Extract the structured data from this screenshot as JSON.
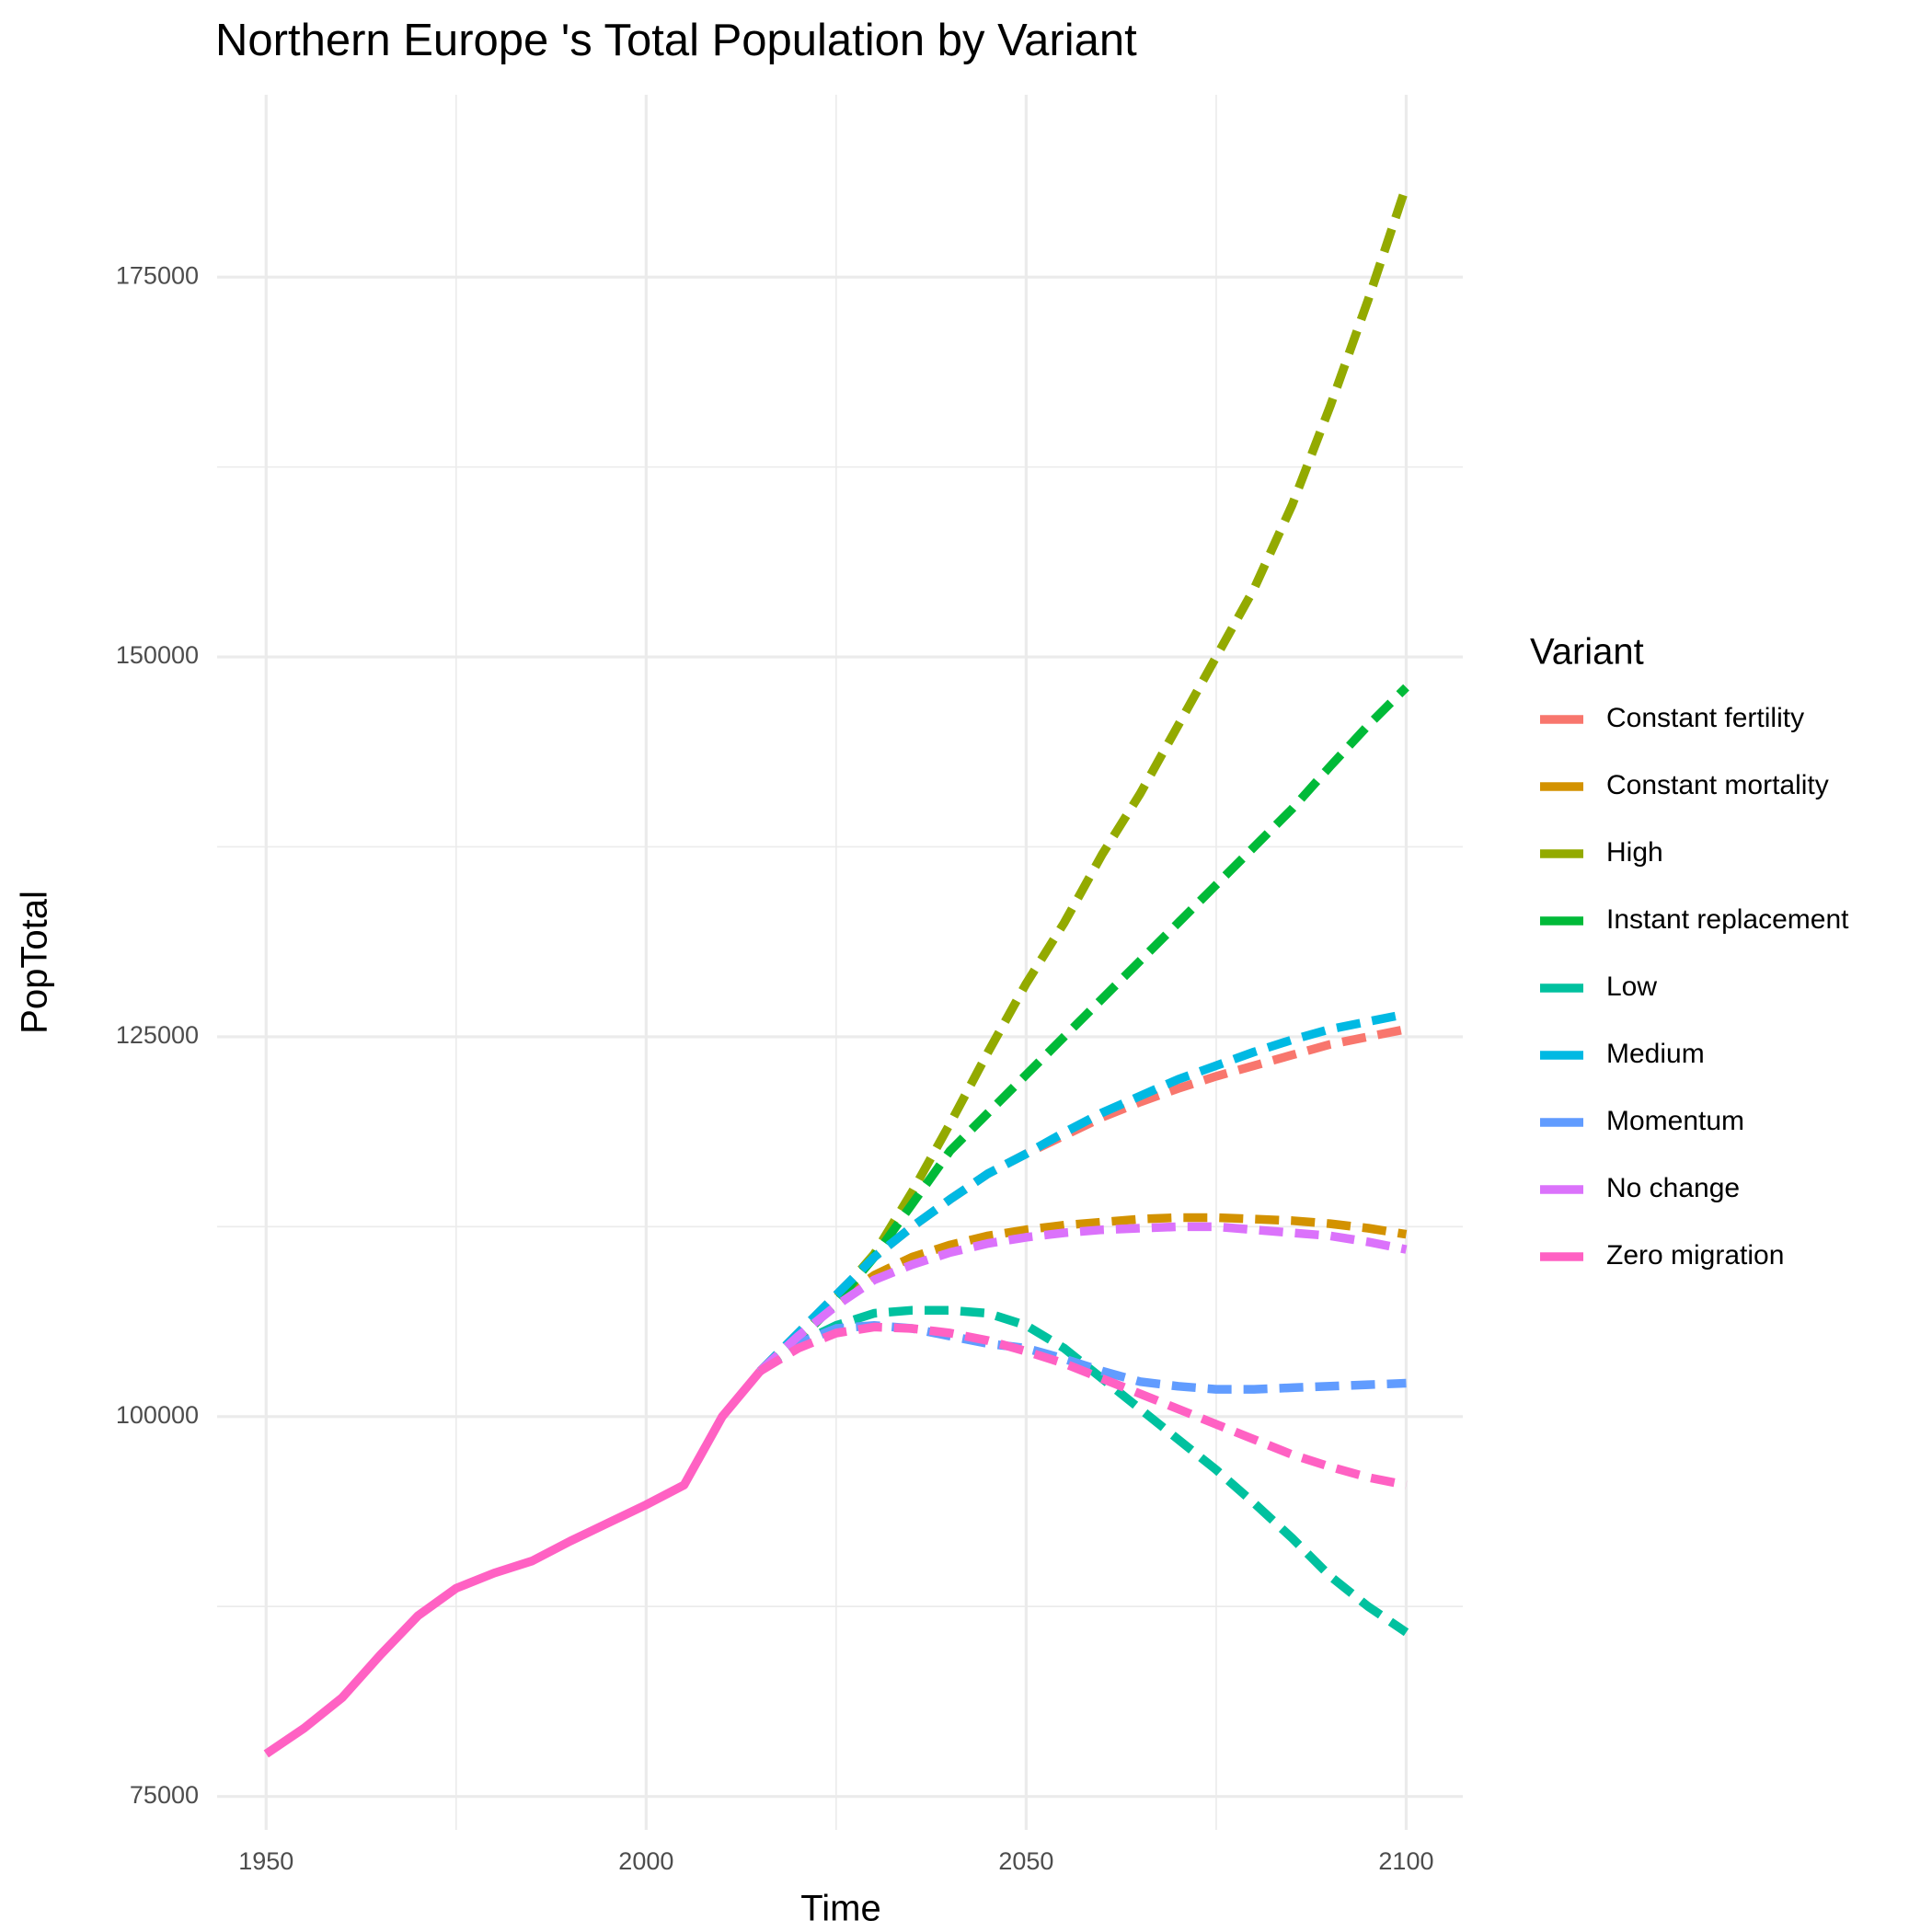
{
  "chart_data": {
    "type": "line",
    "title": "Northern Europe 's Total Population by Variant",
    "xlabel": "Time",
    "ylabel": "PopTotal",
    "legend_title": "Variant",
    "x": [
      1950,
      1955,
      1960,
      1965,
      1970,
      1975,
      1980,
      1985,
      1990,
      1995,
      2000,
      2005,
      2010,
      2015,
      2020,
      2025,
      2030,
      2035,
      2040,
      2045,
      2050,
      2055,
      2060,
      2065,
      2070,
      2075,
      2080,
      2085,
      2090,
      2095,
      2100
    ],
    "projection_from": 2015,
    "xlim": [
      1943.55,
      2107.45
    ],
    "xticks": [
      1950,
      2000,
      2050,
      2100
    ],
    "minor_xticks": [
      1975,
      2025,
      2075
    ],
    "ylim": [
      72800,
      187000
    ],
    "yticks": [
      75000,
      100000,
      125000,
      150000,
      175000
    ],
    "minor_yticks": [
      87500,
      112500,
      137500,
      162500
    ],
    "grid": true,
    "legend": "right",
    "series": [
      {
        "name": "Constant fertility",
        "color": "#F8766D",
        "values": [
          null,
          null,
          null,
          null,
          null,
          null,
          null,
          null,
          null,
          null,
          null,
          null,
          null,
          103000,
          105500,
          108000,
          110500,
          112500,
          114300,
          116000,
          117300,
          118500,
          119700,
          120700,
          121600,
          122400,
          123100,
          123800,
          124500,
          125000,
          125500
        ]
      },
      {
        "name": "Constant mortality",
        "color": "#D39200",
        "values": [
          null,
          null,
          null,
          null,
          null,
          null,
          null,
          null,
          null,
          null,
          null,
          null,
          null,
          103000,
          105300,
          107500,
          109300,
          110500,
          111300,
          111900,
          112300,
          112600,
          112800,
          113000,
          113100,
          113100,
          113000,
          112900,
          112700,
          112400,
          112000
        ]
      },
      {
        "name": "High",
        "color": "#93AA00",
        "values": [
          null,
          null,
          null,
          null,
          null,
          null,
          null,
          null,
          null,
          null,
          null,
          null,
          null,
          103000,
          105000,
          107800,
          110700,
          114800,
          119300,
          124000,
          128500,
          132500,
          137000,
          141000,
          145500,
          150000,
          154500,
          160000,
          166500,
          173500,
          181000
        ]
      },
      {
        "name": "Instant replacement",
        "color": "#00BA38",
        "values": [
          null,
          null,
          null,
          null,
          null,
          null,
          null,
          null,
          null,
          null,
          null,
          null,
          null,
          103000,
          105000,
          107500,
          110500,
          114000,
          117500,
          120000,
          122500,
          125000,
          127500,
          130000,
          132500,
          135000,
          137500,
          140000,
          142800,
          145500,
          148000
        ]
      },
      {
        "name": "Low",
        "color": "#00C19F",
        "values": [
          null,
          null,
          null,
          null,
          null,
          null,
          null,
          null,
          null,
          null,
          null,
          null,
          null,
          103000,
          104800,
          106000,
          106800,
          107000,
          107000,
          106800,
          106000,
          104500,
          102500,
          100500,
          98500,
          96500,
          94300,
          92000,
          89500,
          87500,
          85800
        ]
      },
      {
        "name": "Medium",
        "color": "#00B9E3",
        "values": [
          null,
          null,
          null,
          null,
          null,
          null,
          null,
          null,
          null,
          null,
          null,
          null,
          null,
          103000,
          105500,
          108000,
          110500,
          112500,
          114300,
          116000,
          117300,
          118700,
          120000,
          121100,
          122200,
          123100,
          124000,
          124800,
          125500,
          126000,
          126500
        ]
      },
      {
        "name": "Momentum",
        "color": "#619CFF",
        "values": [
          null,
          null,
          null,
          null,
          null,
          null,
          null,
          null,
          null,
          null,
          null,
          null,
          null,
          103000,
          104800,
          105800,
          106000,
          105800,
          105300,
          104800,
          104500,
          103800,
          103000,
          102300,
          102000,
          101800,
          101800,
          101900,
          102000,
          102100,
          102200
        ]
      },
      {
        "name": "No change",
        "color": "#DB72FB",
        "values": [
          null,
          null,
          null,
          null,
          null,
          null,
          null,
          null,
          null,
          null,
          null,
          null,
          null,
          103000,
          105300,
          107300,
          109000,
          110000,
          110800,
          111400,
          111800,
          112100,
          112300,
          112400,
          112500,
          112500,
          112300,
          112100,
          111900,
          111500,
          111000
        ]
      },
      {
        "name": "Zero migration",
        "color": "#FF61C3",
        "values": [
          77800,
          79500,
          81500,
          84300,
          86900,
          88700,
          89700,
          90500,
          91800,
          93000,
          94200,
          95500,
          100000,
          103000,
          104500,
          105500,
          105900,
          105800,
          105500,
          105000,
          104300,
          103500,
          102500,
          101500,
          100500,
          99500,
          98500,
          97500,
          96700,
          96000,
          95500
        ]
      }
    ]
  }
}
